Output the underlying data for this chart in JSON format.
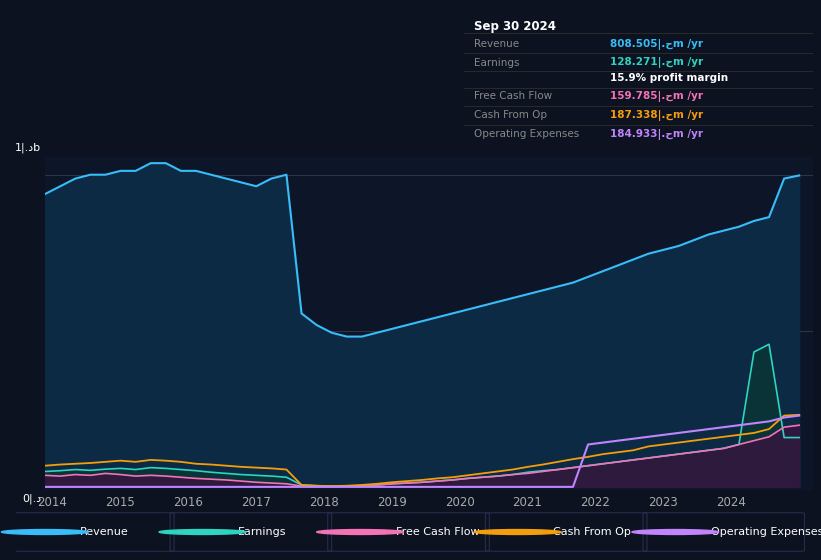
{
  "background_color": "#0c1220",
  "plot_bg_color": "#0c1628",
  "y_label_top": "1|.دb",
  "y_label_bottom": "0|.د",
  "x_ticks": [
    2014,
    2015,
    2016,
    2017,
    2018,
    2019,
    2020,
    2021,
    2022,
    2023,
    2024
  ],
  "legend": [
    {
      "label": "Revenue",
      "color": "#38bdf8"
    },
    {
      "label": "Earnings",
      "color": "#2dd4bf"
    },
    {
      "label": "Free Cash Flow",
      "color": "#f472b6"
    },
    {
      "label": "Cash From Op",
      "color": "#f59e0b"
    },
    {
      "label": "Operating Expenses",
      "color": "#c084fc"
    }
  ],
  "tooltip_date": "Sep 30 2024",
  "tooltip_rows": [
    {
      "label": "Revenue",
      "value": "808.505|.حm /yr",
      "color": "#38bdf8"
    },
    {
      "label": "Earnings",
      "value": "128.271|.حm /yr",
      "color": "#2dd4bf"
    },
    {
      "label": "",
      "value": "15.9% profit margin",
      "color": "#ffffff"
    },
    {
      "label": "Free Cash Flow",
      "value": "159.785|.حm /yr",
      "color": "#f472b6"
    },
    {
      "label": "Cash From Op",
      "value": "187.338|.حm /yr",
      "color": "#f59e0b"
    },
    {
      "label": "Operating Expenses",
      "value": "184.933|.حm /yr",
      "color": "#c084fc"
    }
  ],
  "revenue": [
    760,
    780,
    800,
    810,
    810,
    820,
    820,
    840,
    840,
    820,
    820,
    810,
    800,
    790,
    780,
    800,
    810,
    450,
    420,
    400,
    390,
    390,
    400,
    410,
    420,
    430,
    440,
    450,
    460,
    470,
    480,
    490,
    500,
    510,
    520,
    530,
    545,
    560,
    575,
    590,
    605,
    615,
    625,
    640,
    655,
    665,
    675,
    690,
    700,
    800,
    808
  ],
  "earnings": [
    40,
    42,
    45,
    43,
    46,
    48,
    45,
    50,
    48,
    45,
    42,
    38,
    35,
    32,
    30,
    28,
    25,
    5,
    3,
    2,
    2,
    3,
    5,
    8,
    10,
    12,
    15,
    18,
    22,
    25,
    28,
    32,
    38,
    42,
    45,
    50,
    55,
    60,
    65,
    70,
    75,
    80,
    85,
    90,
    95,
    100,
    110,
    350,
    370,
    128,
    128
  ],
  "free_cash_flow": [
    30,
    28,
    32,
    30,
    35,
    32,
    28,
    30,
    28,
    25,
    22,
    20,
    18,
    15,
    12,
    10,
    8,
    2,
    1,
    1,
    2,
    3,
    5,
    8,
    10,
    12,
    15,
    18,
    22,
    25,
    28,
    32,
    35,
    40,
    45,
    50,
    55,
    60,
    65,
    70,
    75,
    80,
    85,
    90,
    95,
    100,
    110,
    120,
    130,
    155,
    160
  ],
  "cash_from_op": [
    55,
    58,
    60,
    62,
    65,
    68,
    65,
    70,
    68,
    65,
    60,
    58,
    55,
    52,
    50,
    48,
    45,
    5,
    3,
    2,
    3,
    5,
    8,
    12,
    15,
    18,
    22,
    25,
    30,
    35,
    40,
    45,
    52,
    58,
    65,
    72,
    78,
    85,
    90,
    95,
    105,
    110,
    115,
    120,
    125,
    130,
    135,
    140,
    150,
    185,
    187
  ],
  "operating_expenses": [
    0,
    0,
    0,
    0,
    0,
    0,
    0,
    0,
    0,
    0,
    0,
    0,
    0,
    0,
    0,
    0,
    0,
    0,
    0,
    0,
    0,
    0,
    0,
    0,
    0,
    0,
    0,
    0,
    0,
    0,
    0,
    0,
    0,
    0,
    0,
    0,
    110,
    115,
    120,
    125,
    130,
    135,
    140,
    145,
    150,
    155,
    160,
    165,
    170,
    180,
    185
  ]
}
